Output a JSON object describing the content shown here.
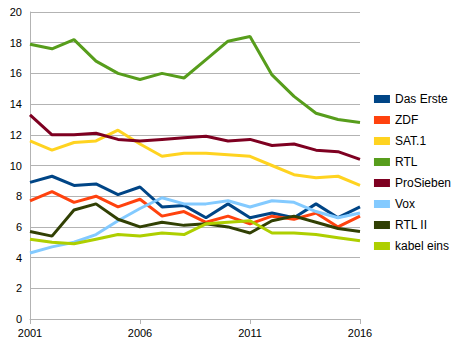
{
  "chart_data": {
    "type": "line",
    "x": [
      2001,
      2002,
      2003,
      2004,
      2005,
      2006,
      2007,
      2008,
      2009,
      2010,
      2011,
      2012,
      2013,
      2014,
      2015,
      2016
    ],
    "xlim": [
      2001,
      2016
    ],
    "xticks": [
      2001,
      2006,
      2011,
      2016
    ],
    "ylim": [
      0,
      20
    ],
    "yticks": [
      0,
      2,
      4,
      6,
      8,
      10,
      12,
      14,
      16,
      18,
      20
    ],
    "grid": true,
    "legend": "right",
    "series": [
      {
        "name": "Das Erste",
        "color": "#004586",
        "values": [
          8.9,
          9.3,
          8.7,
          8.8,
          8.1,
          8.6,
          7.3,
          7.4,
          6.6,
          7.5,
          6.6,
          6.9,
          6.6,
          7.5,
          6.6,
          7.3
        ]
      },
      {
        "name": "ZDF",
        "color": "#ff420e",
        "values": [
          7.7,
          8.3,
          7.6,
          8.0,
          7.3,
          7.8,
          6.7,
          7.0,
          6.3,
          6.7,
          6.2,
          6.7,
          6.5,
          6.9,
          6.0,
          6.7
        ]
      },
      {
        "name": "SAT.1",
        "color": "#ffd320",
        "values": [
          11.6,
          11.0,
          11.5,
          11.6,
          12.3,
          11.4,
          10.6,
          10.8,
          10.8,
          10.7,
          10.6,
          10.0,
          9.4,
          9.2,
          9.3,
          8.7
        ]
      },
      {
        "name": "RTL",
        "color": "#579d1c",
        "values": [
          17.9,
          17.6,
          18.2,
          16.8,
          16.0,
          15.6,
          16.0,
          15.7,
          16.9,
          18.1,
          18.4,
          15.9,
          14.5,
          13.4,
          13.0,
          12.8
        ]
      },
      {
        "name": "ProSieben",
        "color": "#7e0021",
        "values": [
          13.3,
          12.0,
          12.0,
          12.1,
          11.7,
          11.6,
          11.7,
          11.8,
          11.9,
          11.6,
          11.7,
          11.3,
          11.4,
          11.0,
          10.9,
          10.4
        ]
      },
      {
        "name": "Vox",
        "color": "#83caff",
        "values": [
          4.3,
          4.7,
          5.0,
          5.5,
          6.4,
          7.2,
          7.9,
          7.5,
          7.5,
          7.7,
          7.3,
          7.7,
          7.6,
          7.0,
          6.6,
          6.9
        ]
      },
      {
        "name": "RTL II",
        "color": "#314004",
        "values": [
          5.7,
          5.4,
          7.1,
          7.5,
          6.5,
          6.0,
          6.3,
          6.1,
          6.2,
          6.0,
          5.6,
          6.4,
          6.7,
          6.3,
          5.9,
          5.7
        ]
      },
      {
        "name": "kabel eins",
        "color": "#aecf00",
        "values": [
          5.2,
          5.0,
          4.9,
          5.2,
          5.5,
          5.4,
          5.6,
          5.5,
          6.2,
          6.3,
          6.4,
          5.6,
          5.6,
          5.5,
          5.3,
          5.1
        ]
      }
    ]
  }
}
